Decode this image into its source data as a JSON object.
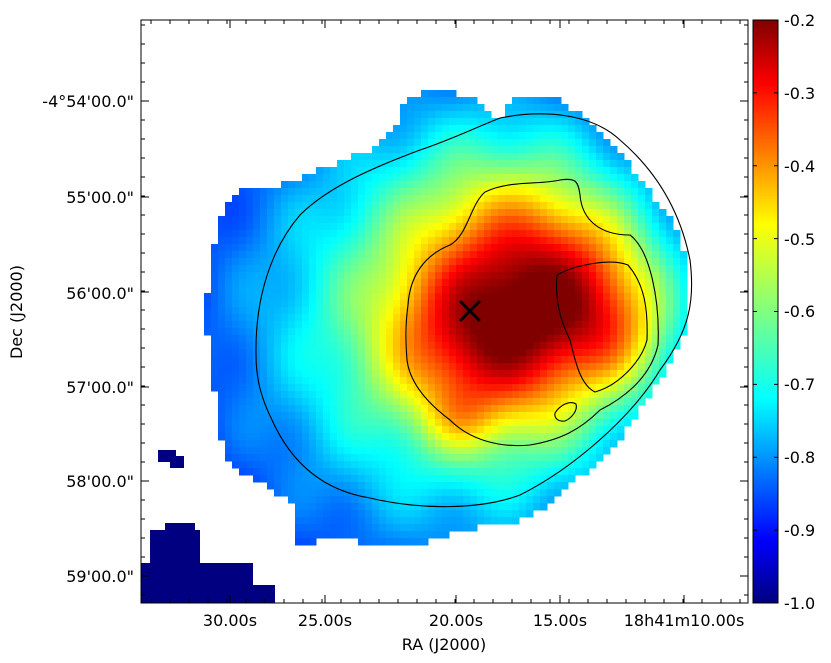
{
  "chart_data": {
    "type": "heatmap",
    "xlabel": "RA (J2000)",
    "ylabel": "Dec (J2000)",
    "x_ticks": [
      "30.00s",
      "25.00s",
      "20.00s",
      "15.00s",
      "18h41m10.00s"
    ],
    "y_ticks": [
      "-4°54'00.0\"",
      "55'00.0\"",
      "56'00.0\"",
      "57'00.0\"",
      "58'00.0\"",
      "59'00.0\""
    ],
    "colorbar": {
      "colormap": "jet",
      "range": [
        -1.0,
        -0.2
      ],
      "ticks": [
        "-0.2",
        "-0.3",
        "-0.4",
        "-0.5",
        "-0.6",
        "-0.7",
        "-0.8",
        "-0.9",
        "-1.0"
      ]
    },
    "marker": {
      "symbol": "×",
      "color": "#000000"
    },
    "contours": {
      "color": "#000000",
      "count": 3
    }
  }
}
